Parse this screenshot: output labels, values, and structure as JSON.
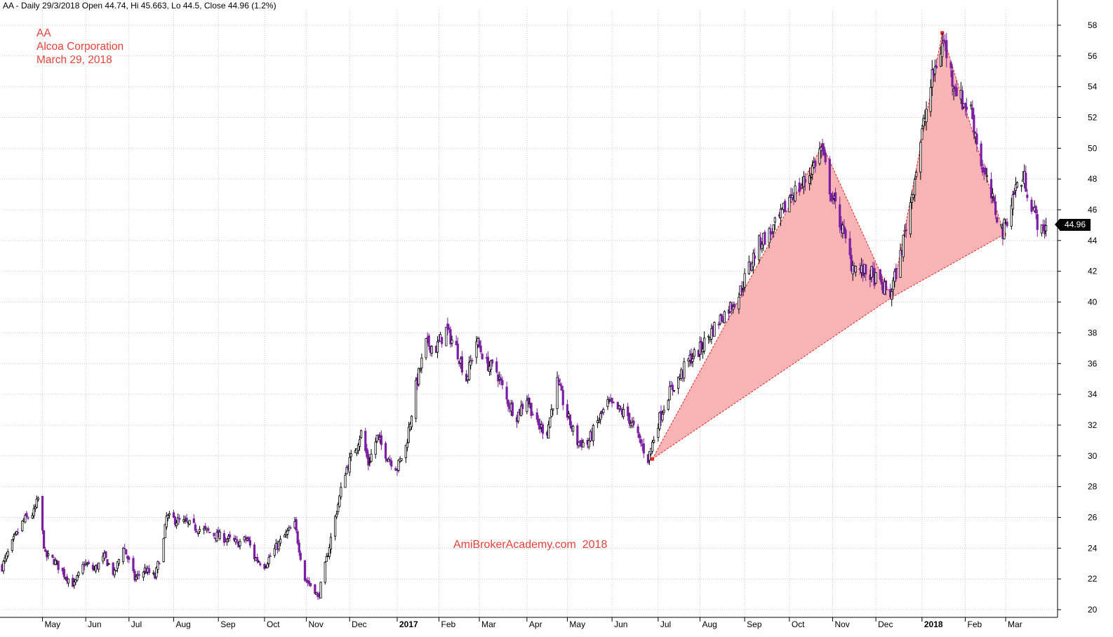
{
  "header": {
    "text": "AA - Daily 29/3/2018 Open 44.74, Hi 45.663, Lo 44.5, Close 44.96 (1.2%)"
  },
  "title_block": {
    "symbol": "AA",
    "company": "Alcoa Corporation",
    "date": "March 29, 2018"
  },
  "watermark": "AmiBrokerAcademy.com  2018",
  "last_price_label": "44.96",
  "colors": {
    "up_candle": "#000000",
    "down_candle": "#7b1fa2",
    "pattern_fill": "#f8b4b4",
    "pattern_line": "#ee2222",
    "text_accent": "#e8403a",
    "grid": "#c8c8c8"
  },
  "chart_data": {
    "type": "candlestick",
    "title": "",
    "xlabel": "",
    "ylabel": "",
    "ylim": [
      19.5,
      59
    ],
    "y_ticks": [
      20,
      22,
      24,
      26,
      28,
      30,
      32,
      34,
      36,
      38,
      40,
      42,
      44,
      46,
      48,
      50,
      52,
      54,
      56,
      58
    ],
    "y_axis_side": "right",
    "grid": true,
    "x_range": [
      "2016-04-04",
      "2018-04-06"
    ],
    "x_ticks": [
      {
        "date": "2016-05-02",
        "label": "May",
        "bold": false
      },
      {
        "date": "2016-06-01",
        "label": "Jun",
        "bold": false
      },
      {
        "date": "2016-07-01",
        "label": "Jul",
        "bold": false
      },
      {
        "date": "2016-08-01",
        "label": "Aug",
        "bold": false
      },
      {
        "date": "2016-09-01",
        "label": "Sep",
        "bold": false
      },
      {
        "date": "2016-10-03",
        "label": "Oct",
        "bold": false
      },
      {
        "date": "2016-11-01",
        "label": "Nov",
        "bold": false
      },
      {
        "date": "2016-12-01",
        "label": "Dec",
        "bold": false
      },
      {
        "date": "2017-01-03",
        "label": "2017",
        "bold": true
      },
      {
        "date": "2017-02-01",
        "label": "Feb",
        "bold": false
      },
      {
        "date": "2017-03-01",
        "label": "Mar",
        "bold": false
      },
      {
        "date": "2017-04-03",
        "label": "Apr",
        "bold": false
      },
      {
        "date": "2017-05-01",
        "label": "May",
        "bold": false
      },
      {
        "date": "2017-06-01",
        "label": "Jun",
        "bold": false
      },
      {
        "date": "2017-07-03",
        "label": "Jul",
        "bold": false
      },
      {
        "date": "2017-08-01",
        "label": "Aug",
        "bold": false
      },
      {
        "date": "2017-09-01",
        "label": "Sep",
        "bold": false
      },
      {
        "date": "2017-10-02",
        "label": "Oct",
        "bold": false
      },
      {
        "date": "2017-11-01",
        "label": "Nov",
        "bold": false
      },
      {
        "date": "2017-12-01",
        "label": "Dec",
        "bold": false
      },
      {
        "date": "2018-01-02",
        "label": "2018",
        "bold": true
      },
      {
        "date": "2018-02-01",
        "label": "Feb",
        "bold": false
      },
      {
        "date": "2018-03-01",
        "label": "Mar",
        "bold": false
      }
    ],
    "price_path": [
      {
        "date": "2016-04-04",
        "close": 22.8
      },
      {
        "date": "2016-04-12",
        "close": 24.5
      },
      {
        "date": "2016-04-19",
        "close": 25.8
      },
      {
        "date": "2016-04-26",
        "close": 26.3
      },
      {
        "date": "2016-04-29",
        "close": 27.2
      },
      {
        "date": "2016-05-04",
        "close": 23.5
      },
      {
        "date": "2016-05-10",
        "close": 23.2
      },
      {
        "date": "2016-05-17",
        "close": 22.3
      },
      {
        "date": "2016-05-24",
        "close": 21.6
      },
      {
        "date": "2016-05-31",
        "close": 23.0
      },
      {
        "date": "2016-06-07",
        "close": 22.6
      },
      {
        "date": "2016-06-14",
        "close": 23.4
      },
      {
        "date": "2016-06-21",
        "close": 22.3
      },
      {
        "date": "2016-06-27",
        "close": 24.2
      },
      {
        "date": "2016-07-05",
        "close": 22.0
      },
      {
        "date": "2016-07-12",
        "close": 22.6
      },
      {
        "date": "2016-07-19",
        "close": 22.1
      },
      {
        "date": "2016-07-25",
        "close": 24.5
      },
      {
        "date": "2016-07-27",
        "close": 26.0
      },
      {
        "date": "2016-08-03",
        "close": 25.8
      },
      {
        "date": "2016-08-10",
        "close": 25.6
      },
      {
        "date": "2016-08-17",
        "close": 25.3
      },
      {
        "date": "2016-08-24",
        "close": 25.1
      },
      {
        "date": "2016-08-31",
        "close": 24.8
      },
      {
        "date": "2016-09-07",
        "close": 24.6
      },
      {
        "date": "2016-09-14",
        "close": 24.3
      },
      {
        "date": "2016-09-21",
        "close": 24.6
      },
      {
        "date": "2016-09-26",
        "close": 23.4
      },
      {
        "date": "2016-10-03",
        "close": 22.9
      },
      {
        "date": "2016-10-10",
        "close": 23.9
      },
      {
        "date": "2016-10-17",
        "close": 24.8
      },
      {
        "date": "2016-10-24",
        "close": 25.5
      },
      {
        "date": "2016-10-31",
        "close": 22.0
      },
      {
        "date": "2016-11-07",
        "close": 21.3
      },
      {
        "date": "2016-11-09",
        "close": 20.7
      },
      {
        "date": "2016-11-14",
        "close": 22.8
      },
      {
        "date": "2016-11-21",
        "close": 26.0
      },
      {
        "date": "2016-11-28",
        "close": 29.0
      },
      {
        "date": "2016-12-05",
        "close": 30.5
      },
      {
        "date": "2016-12-09",
        "close": 31.5
      },
      {
        "date": "2016-12-14",
        "close": 29.5
      },
      {
        "date": "2016-12-20",
        "close": 31.2
      },
      {
        "date": "2016-12-27",
        "close": 30.0
      },
      {
        "date": "2017-01-03",
        "close": 29.2
      },
      {
        "date": "2017-01-09",
        "close": 30.6
      },
      {
        "date": "2017-01-16",
        "close": 34.5
      },
      {
        "date": "2017-01-23",
        "close": 37.3
      },
      {
        "date": "2017-01-30",
        "close": 37.0
      },
      {
        "date": "2017-02-06",
        "close": 38.2
      },
      {
        "date": "2017-02-13",
        "close": 37.0
      },
      {
        "date": "2017-02-20",
        "close": 35.0
      },
      {
        "date": "2017-02-27",
        "close": 37.5
      },
      {
        "date": "2017-03-06",
        "close": 36.0
      },
      {
        "date": "2017-03-13",
        "close": 35.5
      },
      {
        "date": "2017-03-20",
        "close": 33.6
      },
      {
        "date": "2017-03-27",
        "close": 32.6
      },
      {
        "date": "2017-04-03",
        "close": 33.8
      },
      {
        "date": "2017-04-10",
        "close": 32.0
      },
      {
        "date": "2017-04-17",
        "close": 31.6
      },
      {
        "date": "2017-04-24",
        "close": 34.8
      },
      {
        "date": "2017-05-01",
        "close": 32.6
      },
      {
        "date": "2017-05-08",
        "close": 30.9
      },
      {
        "date": "2017-05-15",
        "close": 30.8
      },
      {
        "date": "2017-05-22",
        "close": 32.2
      },
      {
        "date": "2017-05-29",
        "close": 33.4
      },
      {
        "date": "2017-06-05",
        "close": 33.0
      },
      {
        "date": "2017-06-12",
        "close": 32.6
      },
      {
        "date": "2017-06-19",
        "close": 31.2
      },
      {
        "date": "2017-06-26",
        "close": 29.8
      },
      {
        "date": "2017-07-03",
        "close": 32.2
      },
      {
        "date": "2017-07-10",
        "close": 34.0
      },
      {
        "date": "2017-07-17",
        "close": 35.0
      },
      {
        "date": "2017-07-24",
        "close": 36.2
      },
      {
        "date": "2017-07-31",
        "close": 36.8
      },
      {
        "date": "2017-08-07",
        "close": 37.8
      },
      {
        "date": "2017-08-14",
        "close": 38.8
      },
      {
        "date": "2017-08-21",
        "close": 39.6
      },
      {
        "date": "2017-08-28",
        "close": 40.5
      },
      {
        "date": "2017-09-05",
        "close": 42.5
      },
      {
        "date": "2017-09-12",
        "close": 44.0
      },
      {
        "date": "2017-09-19",
        "close": 44.5
      },
      {
        "date": "2017-09-26",
        "close": 45.5
      },
      {
        "date": "2017-10-03",
        "close": 47.0
      },
      {
        "date": "2017-10-10",
        "close": 47.5
      },
      {
        "date": "2017-10-17",
        "close": 48.5
      },
      {
        "date": "2017-10-24",
        "close": 50.0
      },
      {
        "date": "2017-10-31",
        "close": 47.0
      },
      {
        "date": "2017-11-07",
        "close": 45.0
      },
      {
        "date": "2017-11-14",
        "close": 42.5
      },
      {
        "date": "2017-11-21",
        "close": 42.0
      },
      {
        "date": "2017-11-28",
        "close": 41.8
      },
      {
        "date": "2017-12-05",
        "close": 41.0
      },
      {
        "date": "2017-12-11",
        "close": 40.5
      },
      {
        "date": "2017-12-18",
        "close": 43.0
      },
      {
        "date": "2017-12-26",
        "close": 47.0
      },
      {
        "date": "2018-01-02",
        "close": 51.0
      },
      {
        "date": "2018-01-09",
        "close": 54.5
      },
      {
        "date": "2018-01-12",
        "close": 55.5
      },
      {
        "date": "2018-01-17",
        "close": 57.0
      },
      {
        "date": "2018-01-23",
        "close": 54.5
      },
      {
        "date": "2018-01-30",
        "close": 53.0
      },
      {
        "date": "2018-02-05",
        "close": 52.5
      },
      {
        "date": "2018-02-12",
        "close": 49.0
      },
      {
        "date": "2018-02-20",
        "close": 46.5
      },
      {
        "date": "2018-02-27",
        "close": 44.5
      },
      {
        "date": "2018-03-02",
        "close": 45.5
      },
      {
        "date": "2018-03-08",
        "close": 47.5
      },
      {
        "date": "2018-03-14",
        "close": 48.0
      },
      {
        "date": "2018-03-20",
        "close": 46.0
      },
      {
        "date": "2018-03-26",
        "close": 44.5
      },
      {
        "date": "2018-03-29",
        "close": 44.96
      }
    ],
    "pattern": {
      "type": "harmonic",
      "points": [
        {
          "date": "2017-06-29",
          "price": 29.8
        },
        {
          "date": "2017-10-25",
          "price": 50.2
        },
        {
          "date": "2017-12-12",
          "price": 40.3
        },
        {
          "date": "2018-01-16",
          "price": 57.5
        },
        {
          "date": "2018-02-28",
          "price": 44.4
        }
      ]
    },
    "last_close": 44.96
  }
}
